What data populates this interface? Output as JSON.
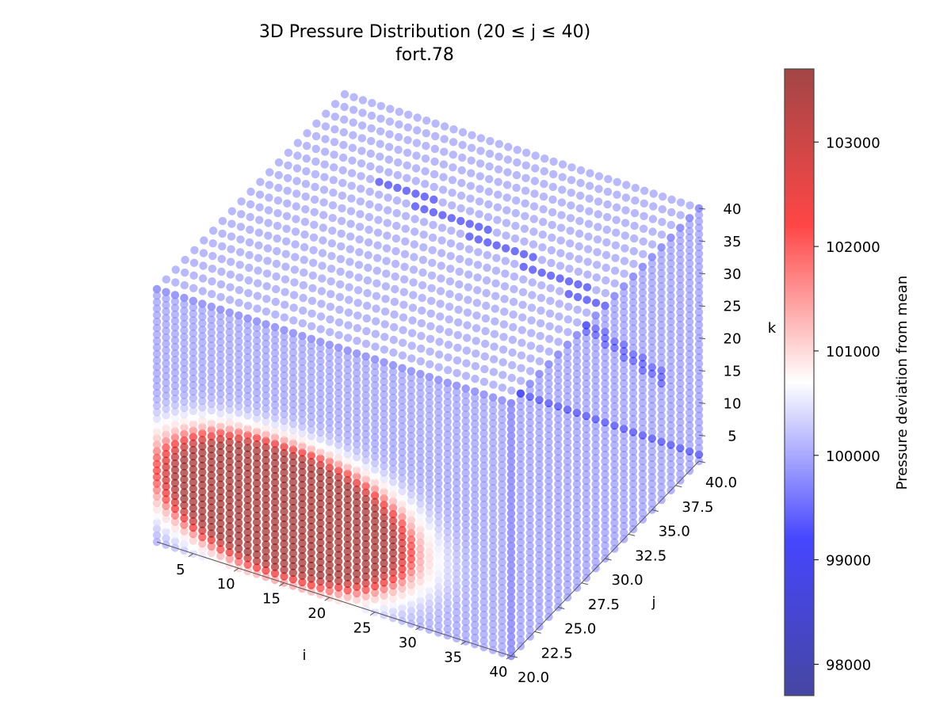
{
  "chart_data": {
    "type": "scatter",
    "title": "3D Pressure Distribution (20 ≤ j ≤ 40)",
    "subtitle": "fort.78",
    "xlabel": "i",
    "ylabel": "j",
    "zlabel": "k",
    "i_range": [
      1,
      40
    ],
    "j_range": [
      20,
      40
    ],
    "k_range": [
      1,
      40
    ],
    "i_ticks": [
      "5",
      "10",
      "15",
      "20",
      "25",
      "30",
      "35",
      "40"
    ],
    "j_ticks": [
      "20.0",
      "22.5",
      "25.0",
      "27.5",
      "30.0",
      "32.5",
      "35.0",
      "37.5",
      "40.0"
    ],
    "k_ticks": [
      "5",
      "10",
      "15",
      "20",
      "25",
      "30",
      "35",
      "40"
    ],
    "high_pressure_region": {
      "i_center": 15,
      "k_center": 12,
      "pressure": 103500
    },
    "background_pressure": 100000,
    "colorbar": {
      "label": "Pressure deviation from mean",
      "min": 97700,
      "max": 103700,
      "ticks": [
        "98000",
        "99000",
        "100000",
        "101000",
        "102000",
        "103000"
      ],
      "colormap": "seismic",
      "colors": {
        "low": "#00007f",
        "mid": "#ffffff",
        "high": "#7f0000"
      }
    }
  }
}
